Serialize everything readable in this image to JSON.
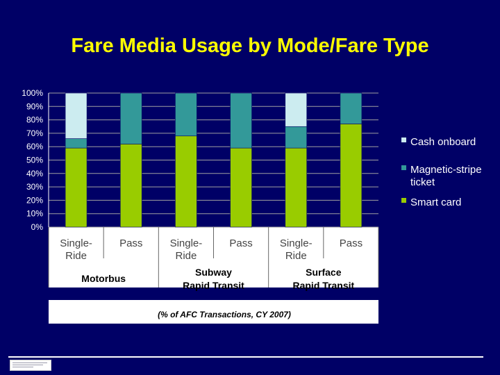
{
  "title": "Fare Media Usage by Mode/Fare Type",
  "note": "(% of AFC Transactions, CY 2007)",
  "colors": {
    "background": "#000066",
    "title": "#FFFF00",
    "plot_bg": "#000066",
    "category_panel": "#FFFFFF",
    "gridline": "#A0A0A0"
  },
  "chart_data": {
    "type": "bar",
    "stacked": true,
    "ylim": [
      0,
      100
    ],
    "y_ticks": [
      "0%",
      "10%",
      "20%",
      "30%",
      "40%",
      "50%",
      "60%",
      "70%",
      "80%",
      "90%",
      "100%"
    ],
    "grid": true,
    "legend_position": "right",
    "categories": [
      "Single-Ride",
      "Pass",
      "Single-Ride",
      "Pass",
      "Single-Ride",
      "Pass"
    ],
    "groups": [
      {
        "label": "Motorbus",
        "span": [
          0,
          1
        ]
      },
      {
        "label": "Subway Rapid Transit",
        "span": [
          2,
          3
        ]
      },
      {
        "label": "Surface Rapid Transit",
        "span": [
          4,
          5
        ]
      }
    ],
    "series": [
      {
        "name": "Smart card",
        "color": "#99CC00",
        "values": [
          59,
          62,
          68,
          59,
          59,
          77
        ]
      },
      {
        "name": "Magnetic-stripe ticket",
        "color": "#339999",
        "values": [
          7,
          38,
          32,
          41,
          16,
          23
        ]
      },
      {
        "name": "Cash onboard",
        "color": "#CCECF0",
        "values": [
          34,
          0,
          0,
          0,
          25,
          0
        ]
      }
    ],
    "legend_order": [
      "Cash onboard",
      "Magnetic-stripe ticket",
      "Smart card"
    ]
  },
  "footer": {
    "logo_icon": "agency-logo-icon"
  }
}
